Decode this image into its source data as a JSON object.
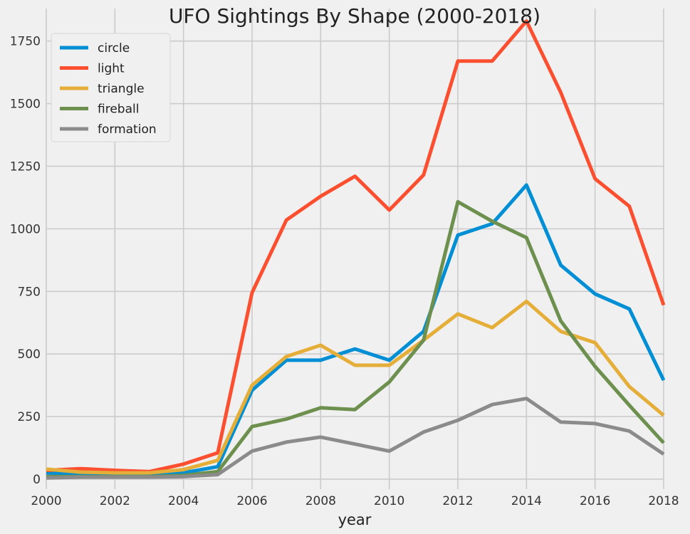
{
  "chart_data": {
    "type": "line",
    "title": "UFO Sightings By Shape (2000-2018)",
    "xlabel": "year",
    "ylabel": "",
    "x": [
      2000,
      2001,
      2002,
      2003,
      2004,
      2005,
      2006,
      2007,
      2008,
      2009,
      2010,
      2011,
      2012,
      2013,
      2014,
      2015,
      2016,
      2017,
      2018
    ],
    "xlim": [
      2000,
      2018
    ],
    "ylim": [
      -40,
      1880
    ],
    "xticks": [
      2000,
      2002,
      2004,
      2006,
      2008,
      2010,
      2012,
      2014,
      2016,
      2018
    ],
    "yticks": [
      0,
      250,
      500,
      750,
      1000,
      1250,
      1500,
      1750
    ],
    "grid": true,
    "legend_position": "top-left",
    "series": [
      {
        "name": "circle",
        "color": "#008fd5",
        "values": [
          25,
          18,
          15,
          15,
          25,
          50,
          355,
          475,
          475,
          520,
          475,
          590,
          975,
          1020,
          1175,
          855,
          740,
          680,
          395
        ]
      },
      {
        "name": "light",
        "color": "#fc4f30",
        "values": [
          35,
          42,
          35,
          30,
          60,
          105,
          745,
          1035,
          1130,
          1210,
          1075,
          1215,
          1670,
          1670,
          1830,
          1545,
          1200,
          1090,
          695
        ]
      },
      {
        "name": "triangle",
        "color": "#e5ae38",
        "values": [
          40,
          28,
          25,
          25,
          38,
          75,
          375,
          490,
          535,
          455,
          455,
          555,
          660,
          605,
          710,
          590,
          545,
          370,
          255
        ]
      },
      {
        "name": "fireball",
        "color": "#6d904f",
        "values": [
          10,
          10,
          10,
          10,
          15,
          30,
          210,
          240,
          285,
          278,
          388,
          555,
          1108,
          1030,
          965,
          632,
          450,
          295,
          145
        ]
      },
      {
        "name": "formation",
        "color": "#8b8b8b",
        "values": [
          5,
          8,
          8,
          8,
          10,
          18,
          112,
          148,
          168,
          140,
          112,
          188,
          235,
          298,
          322,
          228,
          222,
          192,
          100
        ]
      }
    ]
  }
}
